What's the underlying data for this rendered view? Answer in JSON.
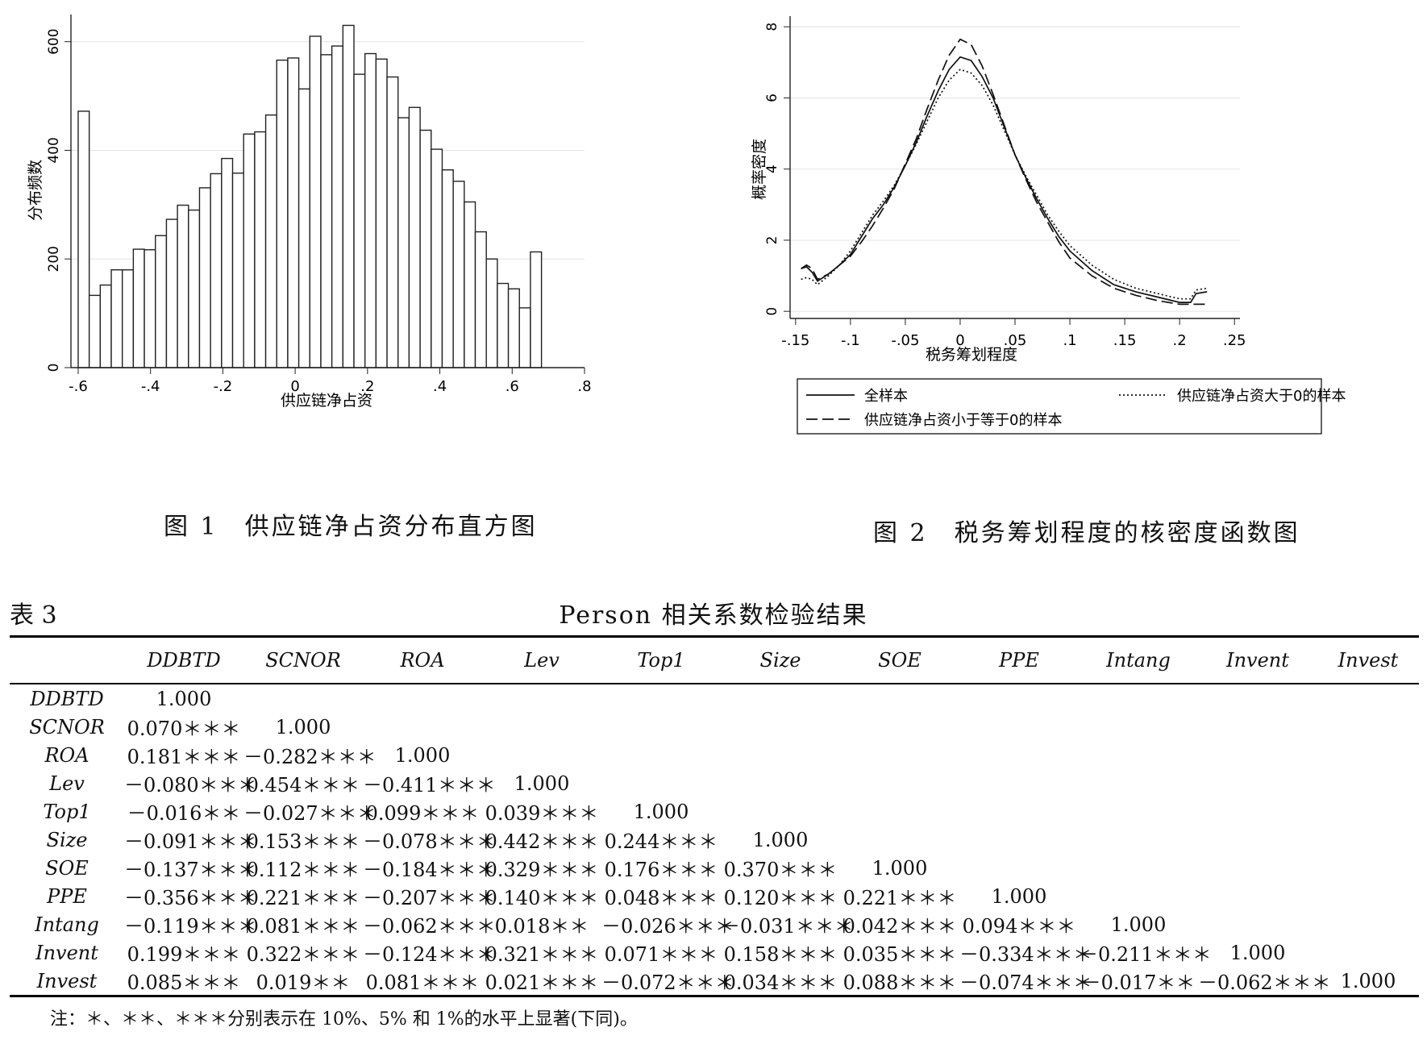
{
  "figure1": {
    "caption": "图 1　供应链净占资分布直方图",
    "chart_data": {
      "type": "bar",
      "xlabel": "供应链净占资",
      "ylabel": "分布频数",
      "xlim": [
        -0.62,
        0.8
      ],
      "ylim": [
        0,
        650
      ],
      "xticks": [
        -0.6,
        -0.4,
        -0.2,
        0,
        0.2,
        0.4,
        0.6,
        0.8
      ],
      "xtick_labels": [
        "-.6",
        "-.4",
        "-.2",
        "0",
        ".2",
        ".4",
        ".6",
        ".8"
      ],
      "yticks": [
        0,
        200,
        400,
        600
      ],
      "ytick_labels": [
        "0",
        "200",
        "400",
        "600"
      ],
      "bin_start": -0.6,
      "bin_width": 0.0305,
      "values": [
        472,
        133,
        152,
        180,
        180,
        218,
        217,
        243,
        273,
        299,
        290,
        331,
        357,
        385,
        358,
        430,
        434,
        465,
        566,
        570,
        513,
        610,
        576,
        592,
        630,
        540,
        578,
        568,
        535,
        460,
        479,
        437,
        402,
        364,
        343,
        305,
        250,
        200,
        155,
        145,
        110,
        213
      ]
    }
  },
  "figure2": {
    "caption": "图 2　税务筹划程度的核密度函数图",
    "chart_data": {
      "type": "line",
      "xlabel": "税务筹划程度",
      "ylabel": "概率密度",
      "xlim": [
        -0.155,
        0.255
      ],
      "ylim": [
        -0.2,
        8.3
      ],
      "xticks": [
        -0.15,
        -0.1,
        -0.05,
        0,
        0.05,
        0.1,
        0.15,
        0.2,
        0.25
      ],
      "xtick_labels": [
        "-.15",
        "-.1",
        "-.05",
        "0",
        ".05",
        ".1",
        ".15",
        ".2",
        ".25"
      ],
      "yticks": [
        0,
        2,
        4,
        6,
        8
      ],
      "ytick_labels": [
        "0",
        "2",
        "4",
        "6",
        "8"
      ],
      "legend_position": "bottom",
      "series": [
        {
          "name": "全样本",
          "style": "solid",
          "x": [
            -0.145,
            -0.14,
            -0.135,
            -0.13,
            -0.12,
            -0.11,
            -0.1,
            -0.09,
            -0.08,
            -0.07,
            -0.06,
            -0.05,
            -0.04,
            -0.03,
            -0.02,
            -0.01,
            0,
            0.01,
            0.02,
            0.03,
            0.04,
            0.05,
            0.06,
            0.07,
            0.08,
            0.09,
            0.1,
            0.12,
            0.14,
            0.16,
            0.18,
            0.2,
            0.21,
            0.215,
            0.225
          ],
          "y": [
            1.2,
            1.25,
            1.1,
            0.85,
            1.05,
            1.3,
            1.6,
            2.1,
            2.6,
            3.0,
            3.5,
            4.1,
            4.75,
            5.5,
            6.2,
            6.8,
            7.15,
            7.05,
            6.6,
            6.0,
            5.2,
            4.4,
            3.75,
            3.15,
            2.6,
            2.1,
            1.7,
            1.15,
            0.75,
            0.55,
            0.4,
            0.25,
            0.25,
            0.5,
            0.55
          ]
        },
        {
          "name": "供应链净占资小于等于0的样本",
          "style": "dash",
          "x": [
            -0.145,
            -0.14,
            -0.135,
            -0.13,
            -0.12,
            -0.11,
            -0.1,
            -0.09,
            -0.08,
            -0.07,
            -0.06,
            -0.05,
            -0.04,
            -0.03,
            -0.02,
            -0.01,
            0,
            0.01,
            0.02,
            0.03,
            0.04,
            0.05,
            0.06,
            0.07,
            0.08,
            0.09,
            0.1,
            0.12,
            0.14,
            0.16,
            0.18,
            0.2,
            0.21,
            0.225
          ],
          "y": [
            1.2,
            1.3,
            1.2,
            0.9,
            1.05,
            1.3,
            1.55,
            1.95,
            2.4,
            2.9,
            3.45,
            4.15,
            4.85,
            5.7,
            6.5,
            7.2,
            7.65,
            7.5,
            6.9,
            6.1,
            5.25,
            4.4,
            3.7,
            3.05,
            2.5,
            1.95,
            1.5,
            1.0,
            0.65,
            0.45,
            0.3,
            0.2,
            0.2,
            0.2
          ]
        },
        {
          "name": "供应链净占资大于0的样本",
          "style": "dot",
          "x": [
            -0.145,
            -0.14,
            -0.135,
            -0.13,
            -0.12,
            -0.11,
            -0.1,
            -0.09,
            -0.08,
            -0.07,
            -0.06,
            -0.05,
            -0.04,
            -0.03,
            -0.02,
            -0.01,
            0,
            0.01,
            0.02,
            0.03,
            0.04,
            0.05,
            0.06,
            0.07,
            0.08,
            0.09,
            0.1,
            0.12,
            0.14,
            0.16,
            0.18,
            0.2,
            0.21,
            0.215,
            0.225
          ],
          "y": [
            0.9,
            0.95,
            0.9,
            0.75,
            1.0,
            1.3,
            1.7,
            2.2,
            2.7,
            3.1,
            3.55,
            4.1,
            4.7,
            5.35,
            6.0,
            6.5,
            6.8,
            6.7,
            6.35,
            5.8,
            5.1,
            4.4,
            3.8,
            3.25,
            2.7,
            2.25,
            1.85,
            1.3,
            0.9,
            0.65,
            0.5,
            0.35,
            0.35,
            0.6,
            0.65
          ]
        }
      ]
    }
  },
  "table3": {
    "label": "表 3",
    "title": "Person 相关系数检验结果",
    "columns": [
      "",
      "DDBTD",
      "SCNOR",
      "ROA",
      "Lev",
      "Top1",
      "Size",
      "SOE",
      "PPE",
      "Intang",
      "Invent",
      "Invest"
    ],
    "rows": [
      [
        "DDBTD",
        "1.000",
        "",
        "",
        "",
        "",
        "",
        "",
        "",
        "",
        "",
        ""
      ],
      [
        "SCNOR",
        "0.070＊＊＊",
        "1.000",
        "",
        "",
        "",
        "",
        "",
        "",
        "",
        "",
        ""
      ],
      [
        "ROA",
        "0.181＊＊＊",
        "－0.282＊＊＊",
        "1.000",
        "",
        "",
        "",
        "",
        "",
        "",
        "",
        ""
      ],
      [
        "Lev",
        "－0.080＊＊＊",
        "0.454＊＊＊",
        "－0.411＊＊＊",
        "1.000",
        "",
        "",
        "",
        "",
        "",
        "",
        ""
      ],
      [
        "Top1",
        "－0.016＊＊",
        "－0.027＊＊＊",
        "0.099＊＊＊",
        "0.039＊＊＊",
        "1.000",
        "",
        "",
        "",
        "",
        "",
        ""
      ],
      [
        "Size",
        "－0.091＊＊＊",
        "0.153＊＊＊",
        "－0.078＊＊＊",
        "0.442＊＊＊",
        "0.244＊＊＊",
        "1.000",
        "",
        "",
        "",
        "",
        ""
      ],
      [
        "SOE",
        "－0.137＊＊＊",
        "0.112＊＊＊",
        "－0.184＊＊＊",
        "0.329＊＊＊",
        "0.176＊＊＊",
        "0.370＊＊＊",
        "1.000",
        "",
        "",
        "",
        ""
      ],
      [
        "PPE",
        "－0.356＊＊＊",
        "0.221＊＊＊",
        "－0.207＊＊＊",
        "0.140＊＊＊",
        "0.048＊＊＊",
        "0.120＊＊＊",
        "0.221＊＊＊",
        "1.000",
        "",
        "",
        ""
      ],
      [
        "Intang",
        "－0.119＊＊＊",
        "0.081＊＊＊",
        "－0.062＊＊＊",
        "0.018＊＊",
        "－0.026＊＊＊",
        "－0.031＊＊＊",
        "0.042＊＊＊",
        "0.094＊＊＊",
        "1.000",
        "",
        ""
      ],
      [
        "Invent",
        "0.199＊＊＊",
        "0.322＊＊＊",
        "－0.124＊＊＊",
        "0.321＊＊＊",
        "0.071＊＊＊",
        "0.158＊＊＊",
        "0.035＊＊＊",
        "－0.334＊＊＊",
        "－0.211＊＊＊",
        "1.000",
        ""
      ],
      [
        "Invest",
        "0.085＊＊＊",
        "0.019＊＊",
        "0.081＊＊＊",
        "0.021＊＊＊",
        "－0.072＊＊＊",
        "0.034＊＊＊",
        "0.088＊＊＊",
        "－0.074＊＊＊",
        "－0.017＊＊",
        "－0.062＊＊＊",
        "1.000"
      ]
    ],
    "note": "注：＊、＊＊、＊＊＊分别表示在 10%、5% 和 1%的水平上显著(下同)。"
  }
}
